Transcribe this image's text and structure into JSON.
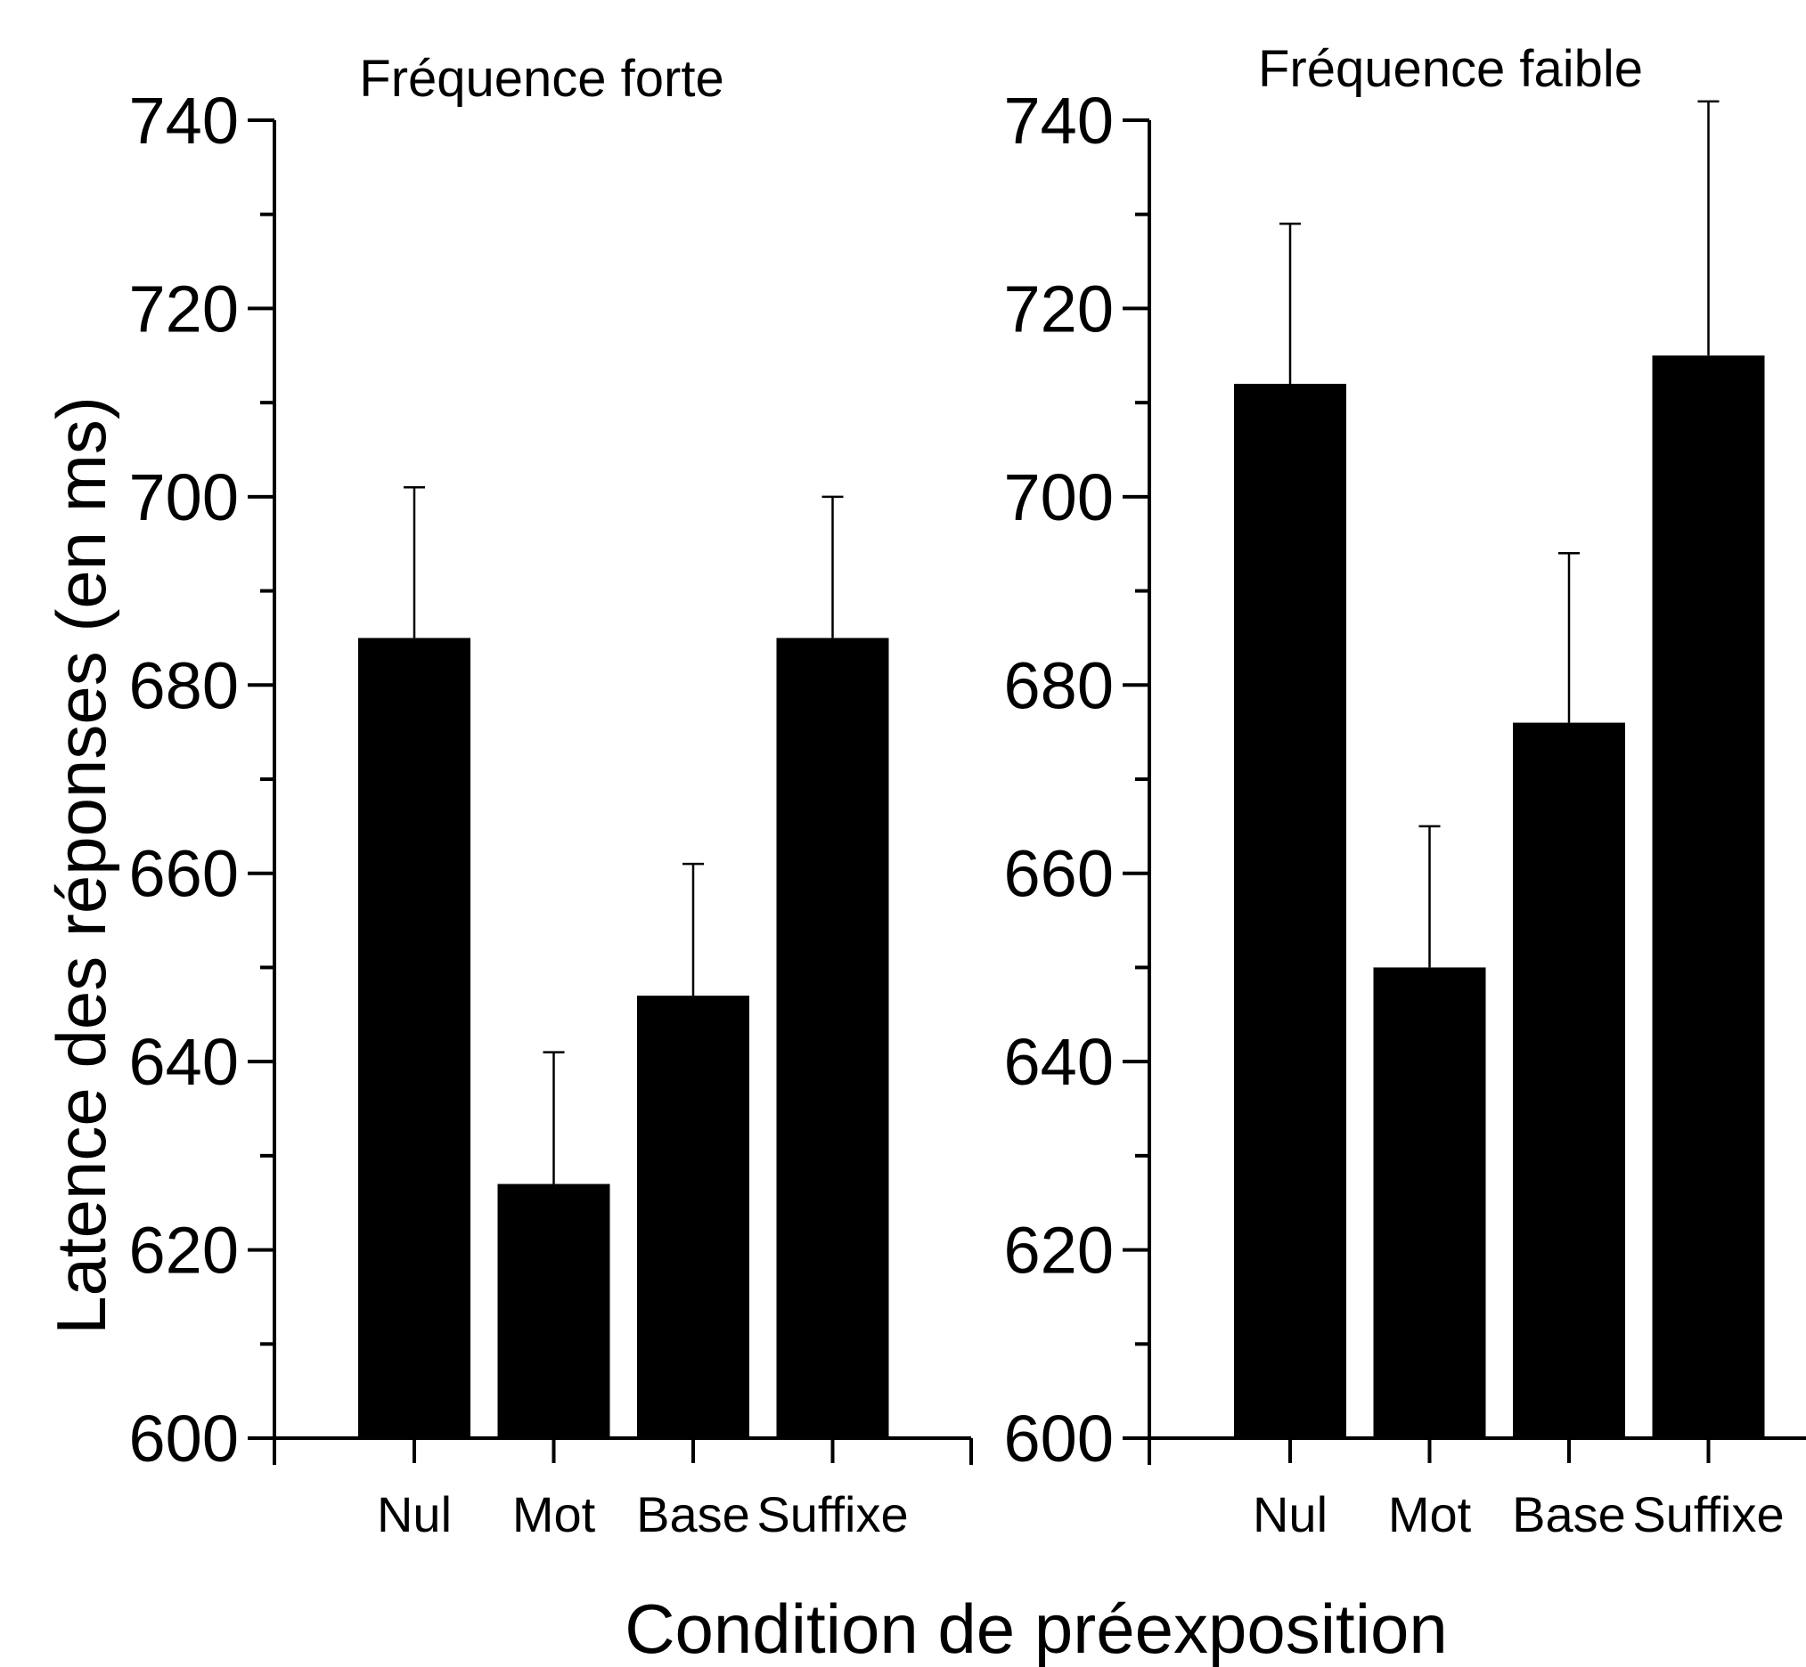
{
  "chart_data": [
    {
      "type": "bar",
      "title": "Fréquence forte",
      "categories": [
        "Nul",
        "Mot",
        "Base",
        "Suffixe"
      ],
      "values": [
        685,
        627,
        647,
        685
      ],
      "error_upper": [
        701,
        641,
        661,
        700
      ],
      "ylim": [
        600,
        740
      ],
      "yticks": [
        "600",
        "620",
        "640",
        "660",
        "680",
        "700",
        "720",
        "740"
      ],
      "bar_color": "#000000"
    },
    {
      "type": "bar",
      "title": "Fréquence faible",
      "categories": [
        "Nul",
        "Mot",
        "Base",
        "Suffixe"
      ],
      "values": [
        712,
        650,
        676,
        715
      ],
      "error_upper": [
        729,
        665,
        694,
        742
      ],
      "ylim": [
        600,
        740
      ],
      "yticks": [
        "600",
        "620",
        "640",
        "660",
        "680",
        "700",
        "720",
        "740"
      ],
      "bar_color": "#000000"
    }
  ],
  "ylabel": "Latence des réponses (en ms)",
  "xlabel": "Condition de préexposition"
}
